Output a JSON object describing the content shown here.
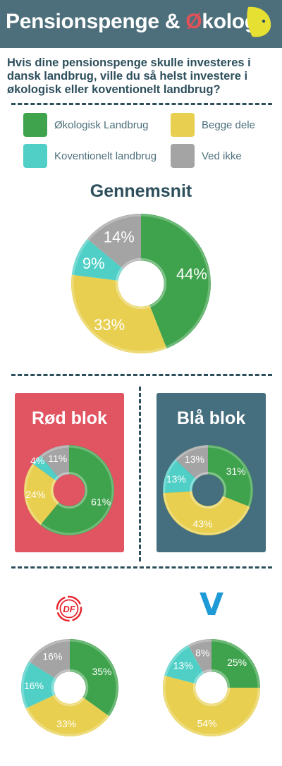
{
  "header": {
    "title_part1": "Pensionspenge & ",
    "title_oe": "Ø",
    "title_part2": "kologi",
    "logo_icon": "yellow-leaf-logo-icon"
  },
  "question": "Hvis dine pensionspenge skulle investeres i dansk landbrug, ville du så helst investere i økologisk eller koventionelt landbrug?",
  "legend": [
    {
      "label": "Økologisk Landbrug",
      "color": "#3fa34d"
    },
    {
      "label": "Begge dele",
      "color": "#e8cf4f"
    },
    {
      "label": "Koventionelt landbrug",
      "color": "#4fcfc6"
    },
    {
      "label": "Ved ikke",
      "color": "#a4a4a4"
    }
  ],
  "colors": {
    "oekologisk": "#3fa34d",
    "begge": "#e8cf4f",
    "koventionelt": "#4fcfc6",
    "vedikke": "#a4a4a4",
    "header_bg": "#4d6f7b",
    "red_panel": "#e15461",
    "blue_panel": "#456f7e",
    "df_red": "#e5262e",
    "venstre_blue": "#1e9ad6"
  },
  "section_titles": {
    "gennemsnit": "Gennemsnit",
    "roed": "Rød blok",
    "blaa": "Blå blok"
  },
  "party_logos": {
    "df": "DF",
    "venstre": "V"
  },
  "chart_data": [
    {
      "type": "pie",
      "id": "gennemsnit",
      "title": "Gennemsnit",
      "categories": [
        "Økologisk Landbrug",
        "Begge dele",
        "Koventionelt landbrug",
        "Ved ikke"
      ],
      "values": [
        44,
        33,
        9,
        14
      ],
      "labels": [
        "44%",
        "33%",
        "9%",
        "14%"
      ]
    },
    {
      "type": "pie",
      "id": "roed",
      "title": "Rød blok",
      "categories": [
        "Økologisk Landbrug",
        "Begge dele",
        "Koventionelt landbrug",
        "Ved ikke"
      ],
      "values": [
        61,
        24,
        4,
        11
      ],
      "labels": [
        "61%",
        "24%",
        "4%",
        "11%"
      ]
    },
    {
      "type": "pie",
      "id": "blaa",
      "title": "Blå blok",
      "categories": [
        "Økologisk Landbrug",
        "Begge dele",
        "Koventionelt landbrug",
        "Ved ikke"
      ],
      "values": [
        31,
        43,
        13,
        13
      ],
      "labels": [
        "31%",
        "43%",
        "13%",
        "13%"
      ]
    },
    {
      "type": "pie",
      "id": "df",
      "title": "",
      "categories": [
        "Økologisk Landbrug",
        "Begge dele",
        "Koventionelt landbrug",
        "Ved ikke"
      ],
      "values": [
        35,
        33,
        16,
        16
      ],
      "labels": [
        "35%",
        "33%",
        "16%",
        "16%"
      ]
    },
    {
      "type": "pie",
      "id": "venstre",
      "title": "",
      "categories": [
        "Økologisk Landbrug",
        "Begge dele",
        "Koventionelt landbrug",
        "Ved ikke"
      ],
      "values": [
        25,
        54,
        13,
        8
      ],
      "labels": [
        "25%",
        "54%",
        "13%",
        "8%"
      ]
    }
  ]
}
